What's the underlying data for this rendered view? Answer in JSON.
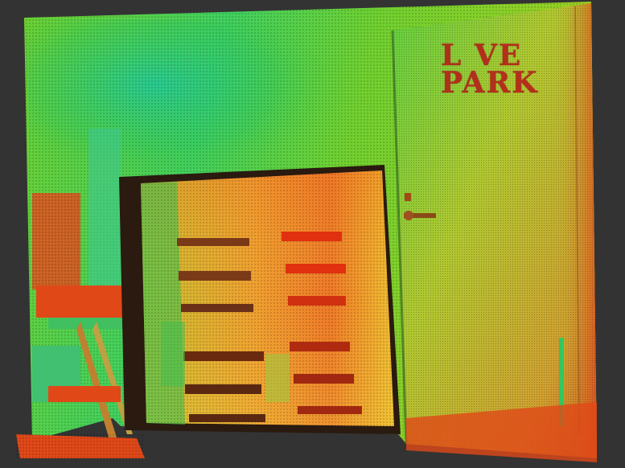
{
  "scene": {
    "kind": "point-cloud-viewer",
    "background_color": "#333333",
    "wall_sign": {
      "line1": "L VE",
      "line2": "PARK"
    },
    "colormap": [
      "#00c8a0",
      "#40d040",
      "#a0e020",
      "#f0c020",
      "#f07020",
      "#e03010"
    ]
  }
}
